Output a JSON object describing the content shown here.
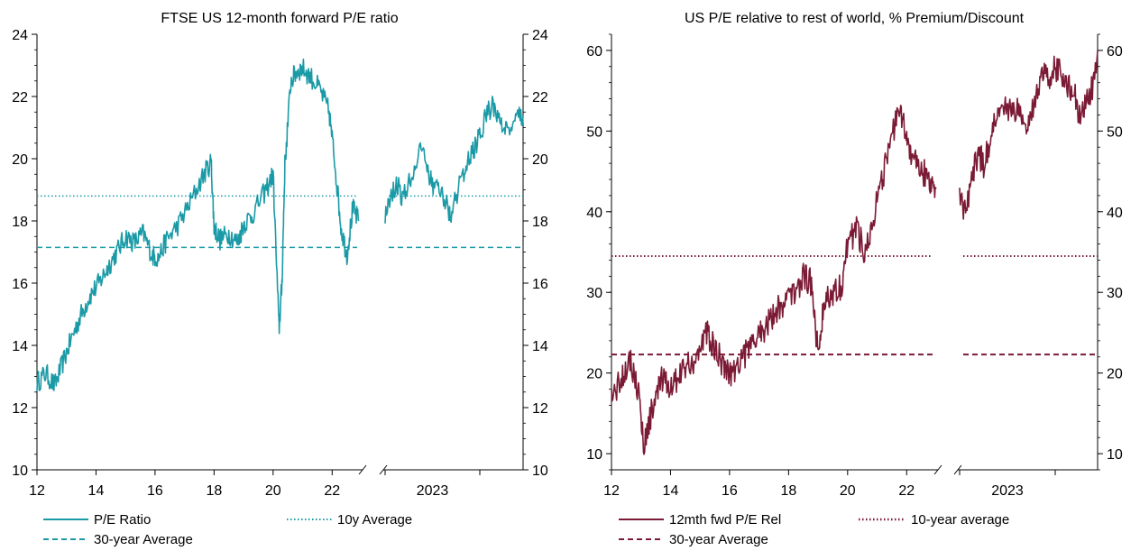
{
  "colors": {
    "left_series": "#1a9aa6",
    "right_series": "#7b1a35",
    "axis": "#000000"
  },
  "chart_data": [
    {
      "type": "line",
      "title": "FTSE US 12-month forward P/E ratio",
      "ylim": [
        10,
        24
      ],
      "y_ticks": [
        "10",
        "12",
        "14",
        "16",
        "18",
        "20",
        "22",
        "24"
      ],
      "x_ticks_main": [
        "12",
        "14",
        "16",
        "18",
        "20",
        "22"
      ],
      "x_ticks_zoom": [
        "2023"
      ],
      "series": [
        {
          "name": "P/E Ratio",
          "style": "solid",
          "x": [
            2012.0,
            2012.3,
            2012.6,
            2012.9,
            2013.2,
            2013.5,
            2013.8,
            2014.1,
            2014.4,
            2014.7,
            2015.0,
            2015.3,
            2015.6,
            2015.9,
            2016.1,
            2016.4,
            2016.8,
            2017.2,
            2017.6,
            2017.9,
            2018.0,
            2018.2,
            2018.5,
            2018.8,
            2019.0,
            2019.3,
            2019.7,
            2020.0,
            2020.2,
            2020.3,
            2020.4,
            2020.6,
            2020.8,
            2021.0,
            2021.3,
            2021.6,
            2021.9,
            2022.1,
            2022.3,
            2022.5,
            2022.7,
            2022.9
          ],
          "values": [
            12.8,
            13.1,
            12.7,
            13.5,
            14.3,
            15.0,
            15.6,
            16.0,
            16.5,
            17.0,
            17.5,
            17.3,
            17.6,
            16.9,
            16.8,
            17.4,
            17.9,
            18.6,
            19.4,
            19.9,
            17.8,
            17.4,
            17.6,
            17.3,
            17.9,
            18.2,
            18.9,
            19.5,
            14.5,
            16.0,
            19.8,
            22.5,
            22.8,
            22.9,
            22.6,
            22.2,
            21.5,
            19.8,
            17.8,
            16.9,
            18.4,
            18.0
          ]
        },
        {
          "name": "30-year Average",
          "style": "dashed",
          "value": 17.15
        },
        {
          "name": "10y Average",
          "style": "dotted",
          "value": 18.8
        }
      ],
      "zoom_series": {
        "x": [
          2022.0,
          2022.1,
          2022.2,
          2022.3,
          2022.4,
          2022.5,
          2022.6,
          2022.7,
          2022.8,
          2022.9,
          2023.0,
          2023.1,
          2023.2,
          2023.3,
          2023.4,
          2023.5,
          2023.6,
          2023.7,
          2023.8,
          2023.9,
          2024.0,
          2024.1,
          2024.2,
          2024.3
        ],
        "values": [
          18.2,
          18.9,
          19.2,
          18.7,
          19.3,
          19.7,
          20.3,
          19.6,
          19.2,
          18.9,
          18.6,
          18.1,
          18.9,
          19.5,
          20.0,
          20.4,
          20.8,
          21.5,
          21.7,
          21.3,
          20.9,
          21.1,
          21.3,
          21.4
        ]
      },
      "legend_placement": "bottom"
    },
    {
      "type": "line",
      "title": "US P/E relative to rest of world, % Premium/Discount",
      "ylim": [
        8,
        62
      ],
      "y_ticks": [
        "10",
        "20",
        "30",
        "40",
        "50",
        "60"
      ],
      "x_ticks_main": [
        "12",
        "14",
        "16",
        "18",
        "20",
        "22"
      ],
      "x_ticks_zoom": [
        "2023"
      ],
      "series": [
        {
          "name": "12mth fwd P/E Rel",
          "style": "solid",
          "x": [
            2012.0,
            2012.3,
            2012.6,
            2012.9,
            2013.1,
            2013.4,
            2013.7,
            2014.0,
            2014.3,
            2014.6,
            2014.9,
            2015.2,
            2015.5,
            2015.8,
            2016.1,
            2016.4,
            2016.7,
            2017.0,
            2017.3,
            2017.6,
            2017.9,
            2018.2,
            2018.5,
            2018.8,
            2019.0,
            2019.2,
            2019.5,
            2019.8,
            2020.0,
            2020.3,
            2020.6,
            2020.9,
            2021.2,
            2021.5,
            2021.8,
            2022.0,
            2022.2,
            2022.5,
            2022.8,
            2023.0
          ],
          "values": [
            17,
            19,
            22,
            18,
            11,
            16,
            19,
            18,
            20,
            21,
            22,
            25,
            23,
            21,
            20,
            22,
            23,
            25,
            26,
            28,
            29,
            30,
            32,
            31,
            22,
            29,
            30,
            31,
            36,
            38,
            35,
            40,
            44,
            50,
            52,
            49,
            47,
            45,
            44,
            43
          ]
        },
        {
          "name": "30-year Average",
          "style": "dashed",
          "value": 22.3
        },
        {
          "name": "10-year average",
          "style": "dotted",
          "value": 34.5
        }
      ],
      "zoom_series": {
        "x": [
          2022.0,
          2022.1,
          2022.2,
          2022.3,
          2022.4,
          2022.5,
          2022.6,
          2022.7,
          2022.8,
          2022.9,
          2023.0,
          2023.1,
          2023.2,
          2023.3,
          2023.4,
          2023.5,
          2023.6,
          2023.7,
          2023.8,
          2023.9,
          2024.0,
          2024.1,
          2024.2,
          2024.3
        ],
        "values": [
          42,
          40,
          44,
          47,
          46,
          48,
          52,
          54,
          53,
          52,
          53,
          51,
          53,
          55,
          57,
          56,
          58,
          57,
          56,
          55,
          52,
          54,
          55,
          60
        ]
      },
      "legend_placement": "bottom"
    }
  ]
}
